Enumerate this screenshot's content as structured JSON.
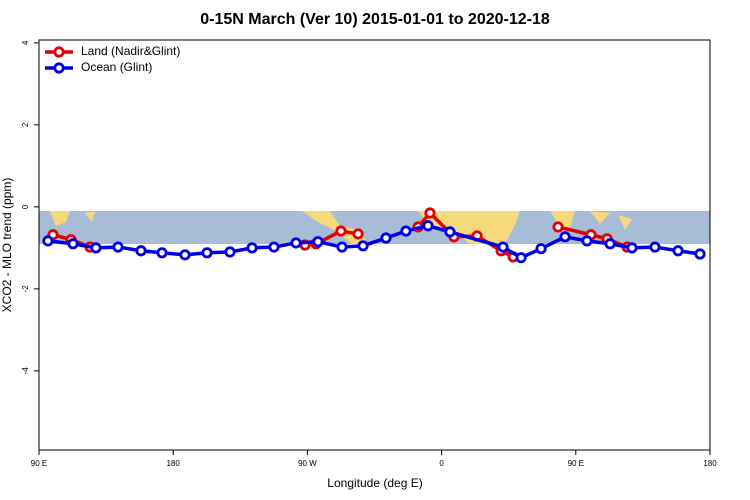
{
  "chart_data": {
    "type": "line",
    "title": "0-15N March (Ver 10)   2015-01-01 to 2020-12-18",
    "x_label": "Longitude (deg E)",
    "y_label": "XCO2 - MLO trend (ppm)",
    "xlim": [
      90,
      540
    ],
    "xticks": [
      {
        "value": 90,
        "label": "90 E"
      },
      180,
      {
        "value": 270,
        "label": "90 W"
      },
      {
        "value": 360,
        "label": "0"
      },
      {
        "value": 450,
        "label": "90 E"
      },
      {
        "value": 540,
        "label": "180"
      }
    ],
    "ylim": [
      -5.93,
      4.07
    ],
    "yticks": [
      -4,
      -2,
      0,
      2,
      4
    ],
    "legend": "top-left",
    "series": [
      {
        "name": "Land (Nadir&Glint)",
        "color": "#e60000",
        "x": [
          99.4,
          111.5,
          124.2,
          null,
          268.4,
          275.8,
          292.5,
          304,
          null,
          344.2,
          352.2,
          368.3,
          383.8,
          399.9,
          408,
          null,
          438.1,
          460.2,
          471,
          484.4
        ],
        "values": [
          -0.68,
          -0.8,
          -0.98,
          null,
          -0.93,
          -0.9,
          -0.59,
          -0.66,
          null,
          -0.49,
          -0.15,
          -0.73,
          -0.71,
          -1.07,
          -1.22,
          null,
          -0.49,
          -0.68,
          -0.78,
          -0.98
        ]
      },
      {
        "name": "Ocean (Glint)",
        "color": "#0000e6",
        "x": [
          96,
          112.8,
          128.2,
          143,
          158.4,
          172.5,
          187.9,
          202.7,
          218.1,
          232.9,
          247.6,
          262.4,
          277.1,
          293.2,
          307.3,
          322.7,
          336.1,
          350.9,
          365.6,
          401.2,
          413.3,
          426.7,
          442.8,
          457.5,
          473,
          487.7,
          503.1,
          518.6,
          533.3
        ],
        "values": [
          -0.83,
          -0.9,
          -1.0,
          -0.98,
          -1.07,
          -1.12,
          -1.17,
          -1.12,
          -1.1,
          -1.0,
          -0.98,
          -0.88,
          -0.85,
          -0.98,
          -0.95,
          -0.76,
          -0.59,
          -0.46,
          -0.61,
          -0.98,
          -1.24,
          -1.02,
          -0.73,
          -0.83,
          -0.9,
          -1.0,
          -0.98,
          -1.07,
          -1.15
        ]
      }
    ]
  }
}
